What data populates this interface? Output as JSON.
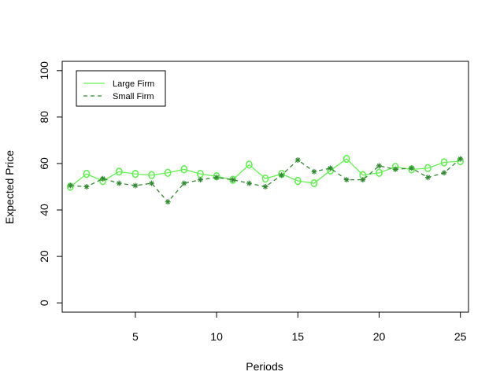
{
  "chart_data": {
    "type": "line",
    "title": "",
    "xlabel": "Periods",
    "ylabel": "Expected Price",
    "xlim": [
      0.5,
      25.5
    ],
    "ylim": [
      -4,
      104
    ],
    "x_ticks": [
      5,
      10,
      15,
      20,
      25
    ],
    "y_ticks": [
      0,
      20,
      40,
      60,
      80,
      100
    ],
    "grid": false,
    "legend_position": "top-left",
    "x": [
      1,
      2,
      3,
      4,
      5,
      6,
      7,
      8,
      9,
      10,
      11,
      12,
      13,
      14,
      15,
      16,
      17,
      18,
      19,
      20,
      21,
      22,
      23,
      24,
      25
    ],
    "series": [
      {
        "name": "Large Firm",
        "color": "#66ee55",
        "line_style": "solid",
        "marker": "circle",
        "values": [
          50,
          55.5,
          52.5,
          56.5,
          55.5,
          55,
          56,
          57.5,
          55.5,
          54.5,
          53,
          59.5,
          53.5,
          55.5,
          52.5,
          51.5,
          57,
          62,
          55,
          56,
          58.5,
          57.5,
          58,
          60.5,
          61
        ]
      },
      {
        "name": "Small Firm",
        "color": "#338833",
        "line_style": "dashed",
        "marker": "star",
        "values": [
          50.5,
          50,
          53.5,
          51.5,
          50.5,
          51.5,
          43.5,
          51.5,
          53,
          54,
          53,
          51.5,
          50,
          55,
          61.5,
          56.5,
          58,
          53,
          53,
          59,
          57.5,
          58,
          54,
          56,
          62
        ]
      }
    ]
  }
}
